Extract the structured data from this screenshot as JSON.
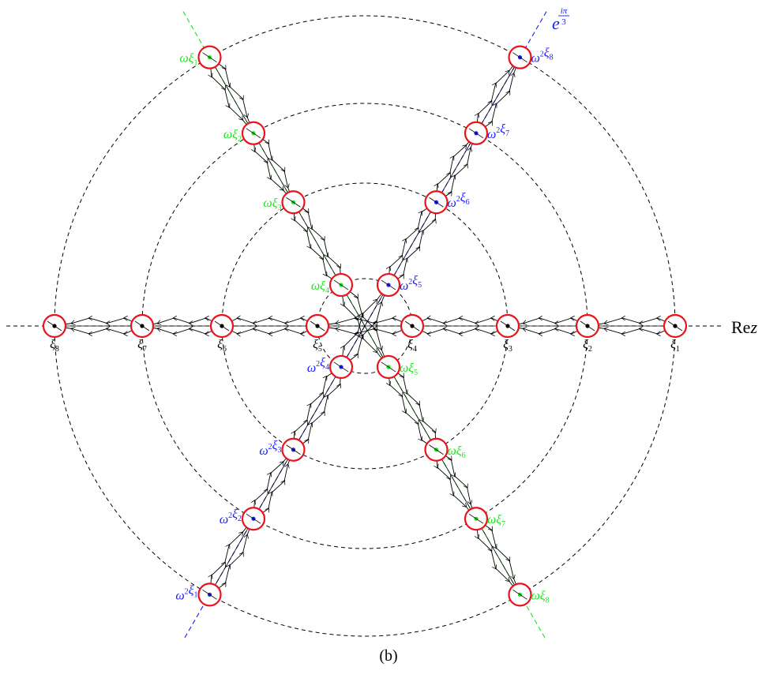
{
  "caption": "(b)",
  "axis_label": "Rez",
  "axis_label_main": "Re",
  "axis_label_var": "z",
  "ray_label": {
    "base": "e",
    "exp_num": "iπ",
    "exp_den": "3"
  },
  "colors": {
    "black": "#000000",
    "red": "#e8141b",
    "green": "#19e619",
    "blue": "#1a1aff"
  },
  "real_labels": [
    "ξ1",
    "ξ2",
    "ξ3",
    "ξ4",
    "ξ5",
    "ξ6",
    "ξ7",
    "ξ8"
  ],
  "green_labels": [
    "ωξ1",
    "ωξ2",
    "ωξ3",
    "ωξ4",
    "ωξ5",
    "ωξ6",
    "ωξ7",
    "ωξ8"
  ],
  "blue_labels": [
    "ω²ξ1",
    "ω²ξ2",
    "ω²ξ3",
    "ω²ξ4",
    "ω²ξ5",
    "ω²ξ6",
    "ω²ξ7",
    "ω²ξ8"
  ],
  "label_parts": {
    "xi": "ξ",
    "omega": "ω",
    "omega_sq": "ω",
    "sq": "2",
    "indices": [
      "1",
      "2",
      "3",
      "4",
      "5",
      "6",
      "7",
      "8"
    ]
  }
}
